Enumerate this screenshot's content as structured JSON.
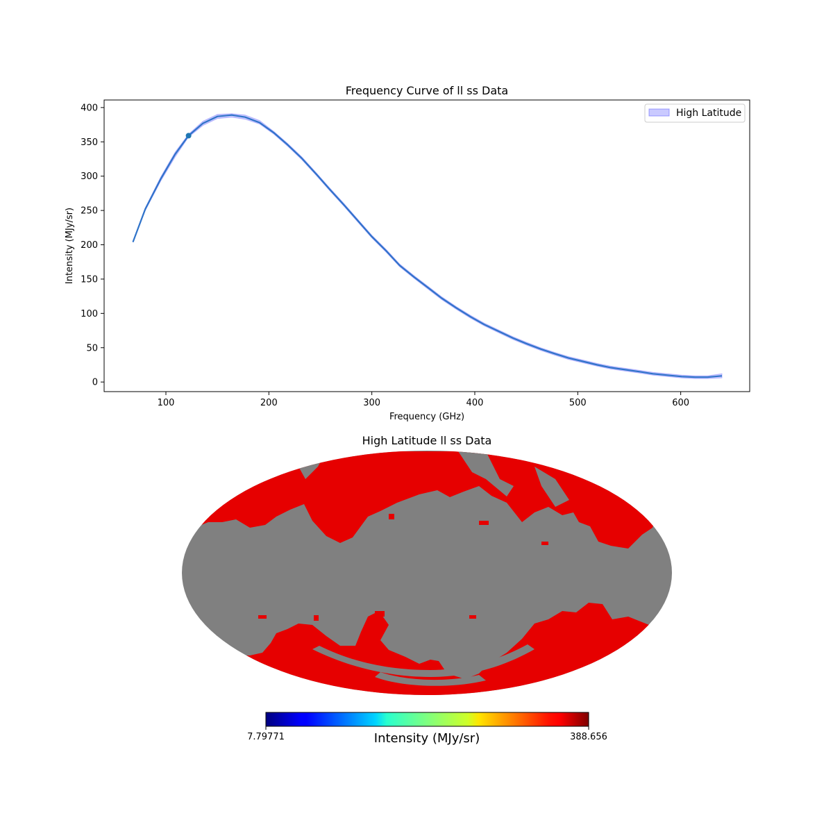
{
  "chart_data": [
    {
      "type": "line",
      "title": "Frequency Curve of ll ss Data",
      "xlabel": "Frequency (GHz)",
      "ylabel": "Intensity (MJy/sr)",
      "xlim": [
        40,
        667
      ],
      "ylim": [
        -14,
        411
      ],
      "xticks": [
        100,
        200,
        300,
        400,
        500,
        600
      ],
      "yticks": [
        0,
        50,
        100,
        150,
        200,
        250,
        300,
        350,
        400
      ],
      "legend": {
        "placement": "top-right",
        "entries": [
          "High Latitude"
        ]
      },
      "grid": false,
      "colors": {
        "line": "#2f73c9",
        "band": "#6666ff",
        "marker": "#1f77b4"
      },
      "series": [
        {
          "x": [
            68,
            80,
            95,
            109,
            122,
            136,
            150,
            164,
            177,
            191,
            205,
            218,
            232,
            246,
            259,
            273,
            287,
            300,
            314,
            327,
            341,
            355,
            368,
            382,
            396,
            409,
            423,
            437,
            450,
            464,
            478,
            491,
            505,
            519,
            532,
            546,
            560,
            573,
            587,
            601,
            614,
            626,
            640
          ],
          "y": [
            204,
            252,
            296,
            332,
            359,
            377,
            387,
            389,
            386,
            378,
            363,
            346,
            326,
            303,
            281,
            258,
            234,
            212,
            191,
            170,
            153,
            137,
            122,
            108,
            95,
            84,
            74,
            64,
            56,
            48,
            41,
            35,
            30,
            25,
            21,
            18,
            15,
            12,
            10,
            8,
            7,
            7,
            9
          ],
          "y_lower": [
            204,
            250,
            293,
            328,
            357,
            374,
            384,
            386,
            383,
            376,
            361,
            344,
            324,
            301,
            279,
            256,
            232,
            210,
            189,
            168,
            151,
            135,
            120,
            106,
            93,
            82,
            72,
            62,
            54,
            46,
            39,
            33,
            28,
            23,
            19,
            16,
            13,
            10,
            8,
            6,
            5,
            5,
            6
          ],
          "y_upper": [
            205,
            254,
            299,
            335,
            361,
            380,
            390,
            391,
            389,
            381,
            365,
            348,
            328,
            305,
            283,
            260,
            236,
            214,
            193,
            172,
            155,
            139,
            124,
            110,
            97,
            86,
            76,
            66,
            58,
            50,
            43,
            37,
            32,
            27,
            23,
            20,
            17,
            14,
            12,
            10,
            9,
            9,
            12
          ]
        }
      ],
      "marker_point": {
        "x": 122,
        "y": 359
      }
    },
    {
      "type": "heatmap",
      "title": "High Latitude ll ss Data",
      "projection": "mollweide",
      "masked_color": "#808080",
      "data_color": "#e60000",
      "colorbar": {
        "min_label": "7.79771",
        "max_label": "388.656",
        "label": "Intensity (MJy/sr)",
        "colormap": "jet"
      }
    }
  ]
}
